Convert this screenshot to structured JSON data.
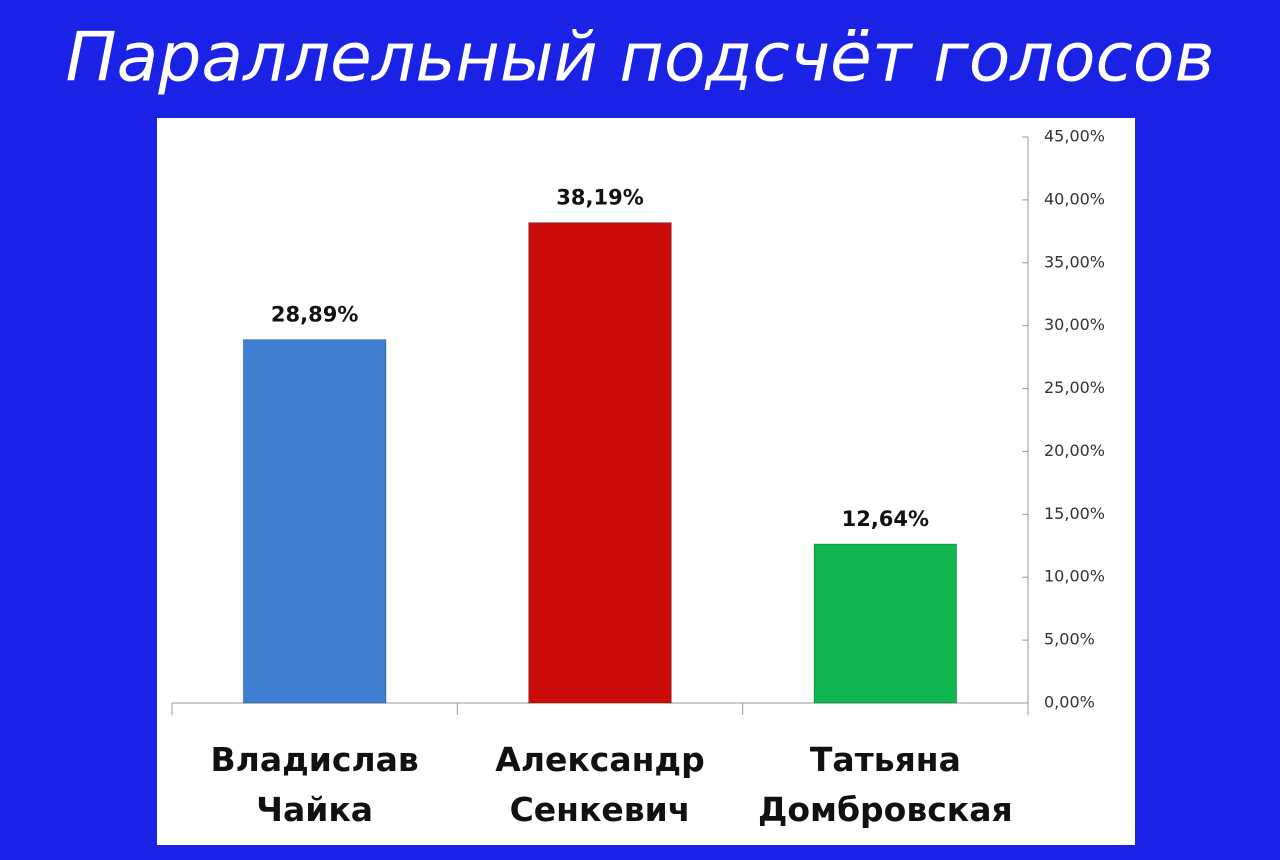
{
  "chart_data": {
    "type": "bar",
    "title": "Параллельный подсчёт голосов",
    "categories": [
      "Владислав Чайка",
      "Александр Сенкевич",
      "Татьяна Домбровская"
    ],
    "values": [
      28.89,
      38.19,
      12.64
    ],
    "value_labels": [
      "28,89%",
      "38,19%",
      "12,64%"
    ],
    "colors": [
      "#3f7fd2",
      "#cc0a0a",
      "#0fb650"
    ],
    "ylim": [
      0,
      45
    ],
    "yticks": [
      {
        "value": 0,
        "label": "0,00%"
      },
      {
        "value": 5,
        "label": "5,00%"
      },
      {
        "value": 10,
        "label": "10,00%"
      },
      {
        "value": 15,
        "label": "15,00%"
      },
      {
        "value": 20,
        "label": "20,00%"
      },
      {
        "value": 25,
        "label": "25,00%"
      },
      {
        "value": 30,
        "label": "30,00%"
      },
      {
        "value": 35,
        "label": "35,00%"
      },
      {
        "value": 40,
        "label": "40,00%"
      },
      {
        "value": 45,
        "label": "45,00%"
      }
    ],
    "y_axis_side": "right"
  }
}
